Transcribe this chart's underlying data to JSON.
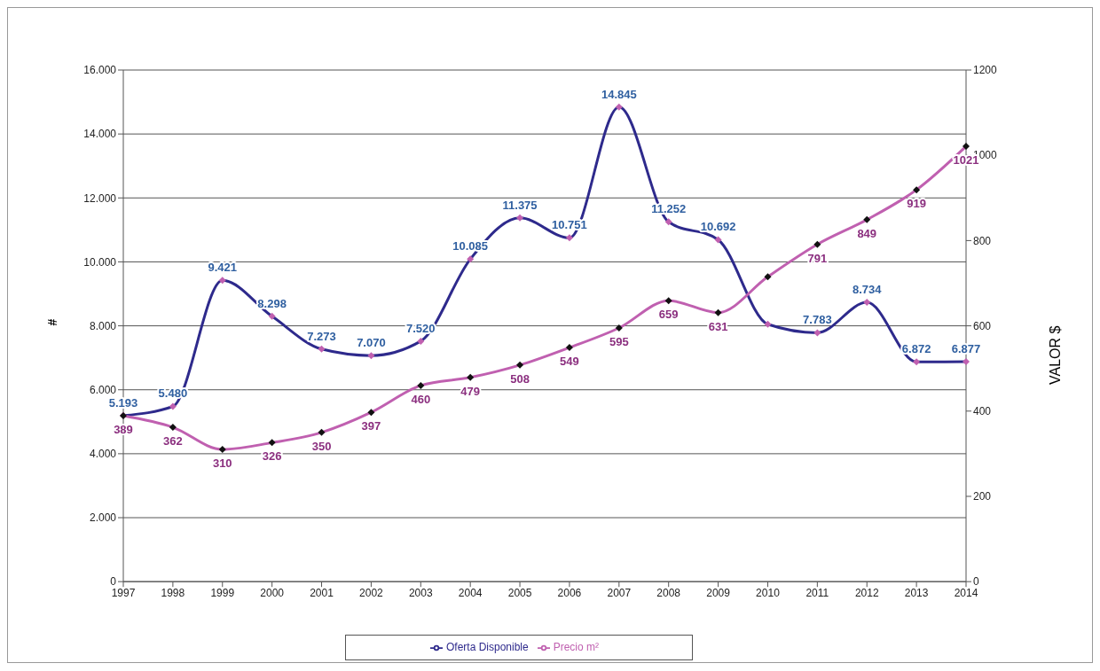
{
  "chart_data": {
    "type": "line",
    "ylabel": "#",
    "y2label": "VALOR $",
    "categories": [
      "1997",
      "1998",
      "1999",
      "2000",
      "2001",
      "2002",
      "2003",
      "2004",
      "2005",
      "2006",
      "2007",
      "2008",
      "2009",
      "2010",
      "2011",
      "2012",
      "2013",
      "2014"
    ],
    "series": [
      {
        "name": "Oferta Disponible",
        "color": "#2e2a8c",
        "values": [
          5193,
          5480,
          9421,
          8298,
          7273,
          7070,
          7520,
          10085,
          11375,
          10751,
          14845,
          11252,
          10692,
          8050,
          7783,
          8734,
          6872,
          6877
        ],
        "value_labels": [
          "5.193",
          "5.480",
          "9.421",
          "8.298",
          "7.273",
          "7.070",
          "7.520",
          "10.085",
          "11.375",
          "10.751",
          "14.845",
          "11.252",
          "10.692",
          null,
          "7.783",
          "8.734",
          "6.872",
          "6.877"
        ]
      },
      {
        "name": "Precio m²",
        "color": "#c060b0",
        "axis": "y2",
        "values": [
          389,
          362,
          310,
          326,
          350,
          397,
          460,
          479,
          508,
          549,
          595,
          659,
          631,
          715,
          791,
          849,
          919,
          1021
        ],
        "value_labels": [
          "389",
          "362",
          "310",
          "326",
          "350",
          "397",
          "460",
          "479",
          "508",
          "549",
          "595",
          "659",
          "631",
          null,
          "791",
          "849",
          "919",
          "1021"
        ]
      }
    ],
    "ylim": [
      0,
      16000
    ],
    "yticks": [
      0,
      {
        "value": 2000,
        "label": "2.000"
      },
      {
        "value": 4000,
        "label": "4.000"
      },
      {
        "value": 6000,
        "label": "6.000"
      },
      {
        "value": 8000,
        "label": "8.000"
      },
      {
        "value": 10000,
        "label": "10.000"
      },
      {
        "value": 12000,
        "label": "12.000"
      },
      {
        "value": 14000,
        "label": "14.000"
      },
      {
        "value": 16000,
        "label": "16.000"
      }
    ],
    "y2lim": [
      0,
      1200
    ],
    "y2ticks": [
      0,
      200,
      400,
      600,
      800,
      1000,
      1200
    ],
    "grid": "y",
    "legend": "bottom",
    "marker": "diamond",
    "line_style": "solid"
  }
}
